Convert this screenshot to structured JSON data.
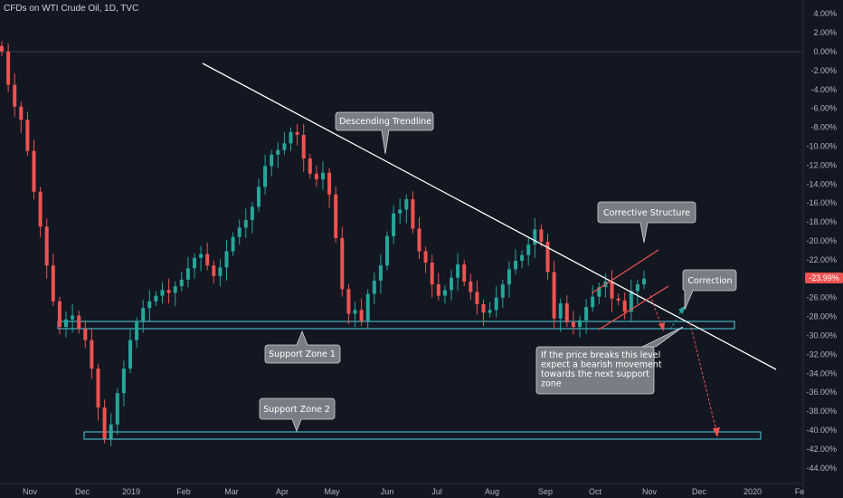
{
  "header": {
    "symbol_title": "CFDs on WTI Crude Oil, 1D, TVC"
  },
  "colors": {
    "background": "#131722",
    "up_candle": "#26a69a",
    "down_candle": "#ef5350",
    "trendline": "#ffffff",
    "zone_border": "#4dd0e1",
    "price_badge": "#ef5350",
    "callout_bg": "#7a7d84"
  },
  "chart_data": {
    "type": "candlestick",
    "yaxis_unit": "percent",
    "ylim": [
      -45,
      5
    ],
    "y_ticks": [
      "4.00%",
      "2.00%",
      "0.00%",
      "-2.00%",
      "-4.00%",
      "-6.00%",
      "-8.00%",
      "-10.00%",
      "-12.00%",
      "-14.00%",
      "-16.00%",
      "-18.00%",
      "-20.00%",
      "-22.00%",
      "-24.00%",
      "-26.00%",
      "-28.00%",
      "-30.00%",
      "-32.00%",
      "-34.00%",
      "-36.00%",
      "-38.00%",
      "-40.00%",
      "-42.00%",
      "-44.00%"
    ],
    "x_ticks": [
      "Nov",
      "Dec",
      "2019",
      "Feb",
      "Mar",
      "Apr",
      "May",
      "Jun",
      "Jul",
      "Aug",
      "Sep",
      "Oct",
      "Nov",
      "Dec",
      "2020",
      "Fe"
    ],
    "last_value_label": "-23.99%",
    "series_pct_close": [
      0,
      -3.5,
      -5.8,
      -7.2,
      -10.5,
      -14.8,
      -18.5,
      -22.6,
      -26.4,
      -29.1,
      -28.3,
      -27.9,
      -29.3,
      -30.5,
      -33.5,
      -37.6,
      -40.9,
      -39.4,
      -36.1,
      -33.5,
      -30.5,
      -28.6,
      -27.1,
      -26.4,
      -25.8,
      -25.2,
      -25.5,
      -24.8,
      -24.1,
      -22.9,
      -21.8,
      -21.4,
      -22.6,
      -23.7,
      -22.8,
      -21.1,
      -19.6,
      -18.6,
      -17.8,
      -16.4,
      -14.3,
      -12.1,
      -10.9,
      -10.4,
      -9.7,
      -8.5,
      -8.8,
      -11.3,
      -12.9,
      -13.5,
      -12.8,
      -15.1,
      -19.7,
      -25.1,
      -27.7,
      -27.3,
      -28.5,
      -25.6,
      -24.2,
      -22.6,
      -19.5,
      -17.1,
      -16.7,
      -15.6,
      -18.7,
      -21.1,
      -22.3,
      -24.6,
      -25.8,
      -25.2,
      -23.9,
      -22.5,
      -24.3,
      -25.4,
      -26.7,
      -27.6,
      -27.3,
      -26.0,
      -24.6,
      -23.0,
      -22.1,
      -21.5,
      -20.4,
      -18.8,
      -20.1,
      -23.3,
      -28.2,
      -26.6,
      -28.6,
      -29.1,
      -28.4,
      -27.0,
      -25.9,
      -24.9,
      -24.3,
      -26.1,
      -26.3,
      -27.5,
      -25.3,
      -24.6,
      -23.99
    ],
    "annotations": {
      "descending_trendline": "Descending Trendline",
      "corrective_structure": "Corrective Structure",
      "correction": "Correction",
      "support_zone_1": "Support Zone 1",
      "support_zone_2": "Support Zone 2",
      "breakdown_note_lines": [
        "If the price breaks this level",
        "expect a bearish movement",
        "towards the next support",
        "zone"
      ]
    },
    "support_zones": [
      {
        "label": "Support Zone 1",
        "from_pct": -28.6,
        "to_pct": -29.5
      },
      {
        "label": "Support Zone 2",
        "from_pct": -40.0,
        "to_pct": -40.8
      }
    ],
    "grid": false
  }
}
